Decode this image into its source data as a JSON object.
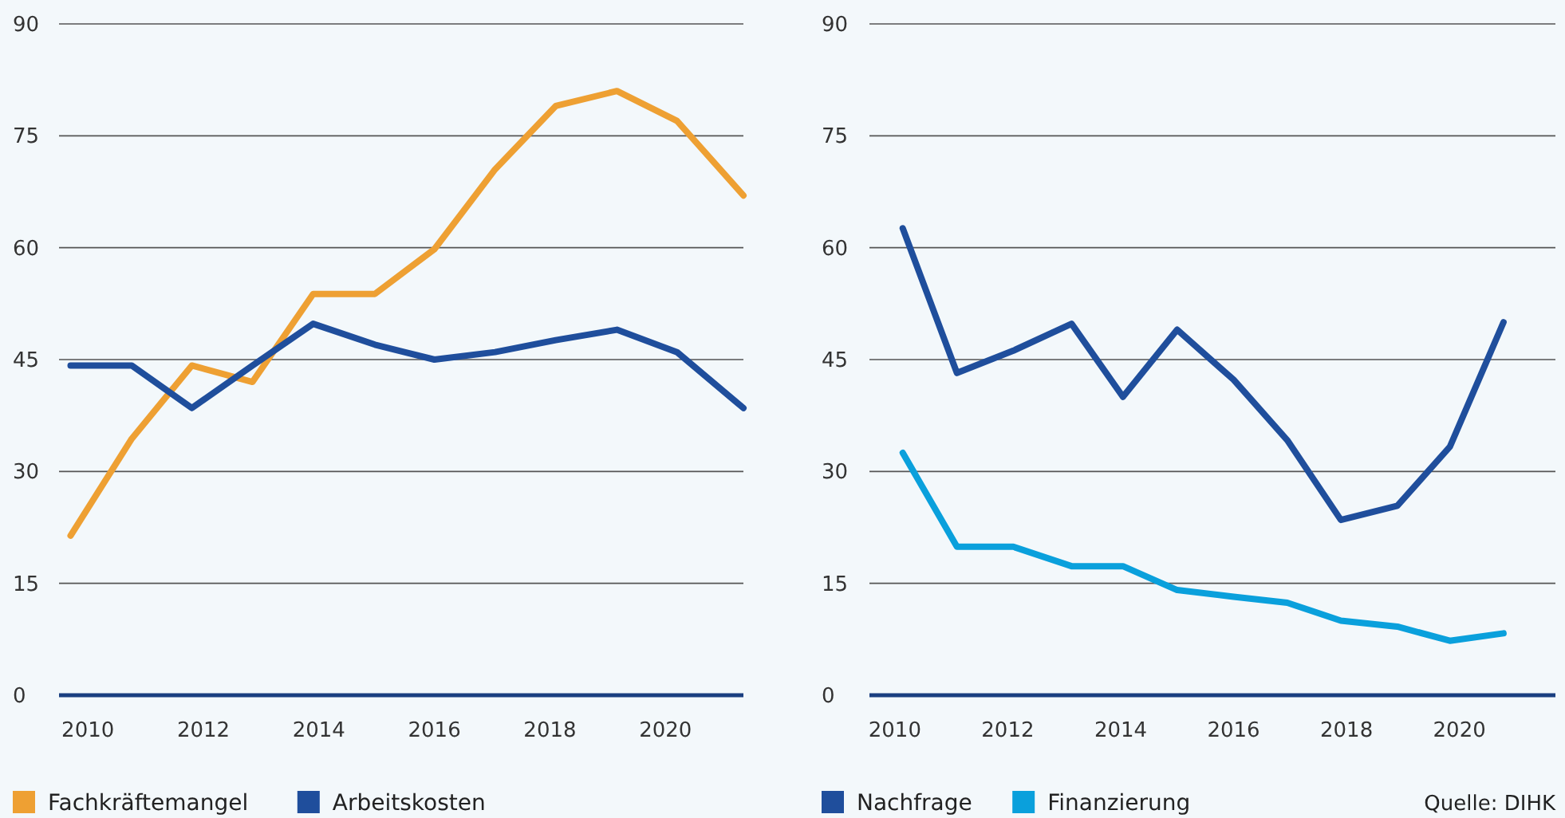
{
  "chart_data": [
    {
      "type": "line",
      "xlim": [
        2009.5,
        2021.35
      ],
      "xticks": [
        2010,
        2012,
        2014,
        2016,
        2018,
        2020
      ],
      "ylim": [
        0,
        90
      ],
      "yticks": [
        0,
        15,
        30,
        45,
        60,
        75,
        90
      ],
      "grid": "y",
      "legend": "bottom left",
      "marker": "none",
      "line_style": "solid",
      "x": [
        2009.7,
        2010.76,
        2011.8,
        2012.85,
        2013.9,
        2014.97,
        2016.0,
        2017.05,
        2018.1,
        2019.16,
        2020.2,
        2021.35
      ],
      "series": [
        {
          "name": "Fachkräftemangel",
          "color": "#eea033",
          "values": [
            21.4,
            34.4,
            44.2,
            42,
            53.8,
            53.8,
            59.8,
            70.5,
            79,
            81,
            77,
            67
          ]
        },
        {
          "name": "Arbeitskosten",
          "color": "#1f4e9c",
          "values": [
            44.2,
            44.2,
            38.5,
            44.2,
            49.8,
            47,
            45,
            46,
            47.6,
            49,
            46,
            38.5
          ]
        }
      ]
    },
    {
      "type": "line",
      "xlim": [
        2009.55,
        2021.7
      ],
      "xticks": [
        2010,
        2012,
        2014,
        2016,
        2018,
        2020
      ],
      "ylim": [
        0,
        90
      ],
      "yticks": [
        0,
        15,
        30,
        45,
        60,
        75,
        90
      ],
      "grid": "y",
      "legend": "bottom left",
      "marker": "none",
      "line_style": "solid",
      "x": [
        2010.14,
        2011.1,
        2012.1,
        2013.13,
        2014.04,
        2015.0,
        2016.0,
        2016.95,
        2017.9,
        2018.9,
        2019.83,
        2020.78
      ],
      "series": [
        {
          "name": "Nachfrage",
          "color": "#1f4e9c",
          "values": [
            62.6,
            43.2,
            46.2,
            49.8,
            40,
            49,
            42.3,
            34.2,
            23.5,
            25.4,
            33.3,
            50
          ]
        },
        {
          "name": "Finanzierung",
          "color": "#0aa0dc",
          "values": [
            32.5,
            19.9,
            19.9,
            17.3,
            17.3,
            14.1,
            13.2,
            12.4,
            10,
            9.2,
            7.3,
            8.3
          ]
        }
      ],
      "annotations": [
        "Quelle: DIHK"
      ]
    }
  ]
}
